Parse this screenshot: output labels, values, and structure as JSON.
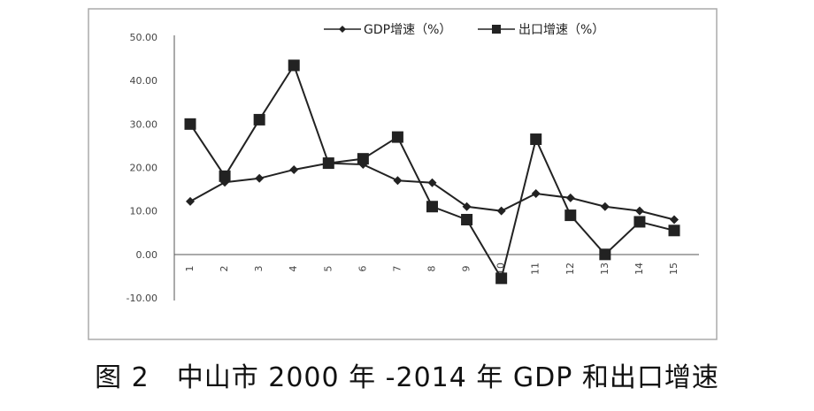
{
  "caption": "图 2　中山市 2000 年 -2014 年 GDP 和出口增速",
  "chart_data": {
    "type": "line",
    "title": "",
    "xlabel": "",
    "ylabel": "",
    "ylim": [
      -10,
      50
    ],
    "yticks": [
      -10,
      0,
      10,
      20,
      30,
      40,
      50
    ],
    "ytick_labels": [
      "-10.00",
      "0.00",
      "10.00",
      "20.00",
      "30.00",
      "40.00",
      "50.00"
    ],
    "categories": [
      "1",
      "2",
      "3",
      "4",
      "5",
      "6",
      "7",
      "8",
      "9",
      "10",
      "11",
      "12",
      "13",
      "14",
      "15"
    ],
    "series": [
      {
        "name": "GDP增速（%）",
        "marker": "diamond",
        "color": "#222222",
        "values": [
          12.2,
          16.6,
          17.5,
          19.5,
          21.0,
          20.7,
          17.0,
          16.5,
          11.0,
          10.0,
          14.0,
          13.0,
          11.0,
          10.0,
          8.0
        ]
      },
      {
        "name": "出口增速（%）",
        "marker": "square",
        "color": "#222222",
        "values": [
          30.0,
          18.0,
          31.0,
          43.5,
          21.0,
          22.0,
          27.0,
          11.0,
          8.0,
          -5.5,
          26.5,
          9.0,
          0.0,
          7.5,
          5.5
        ]
      }
    ],
    "legend_position": "top",
    "grid": false
  }
}
